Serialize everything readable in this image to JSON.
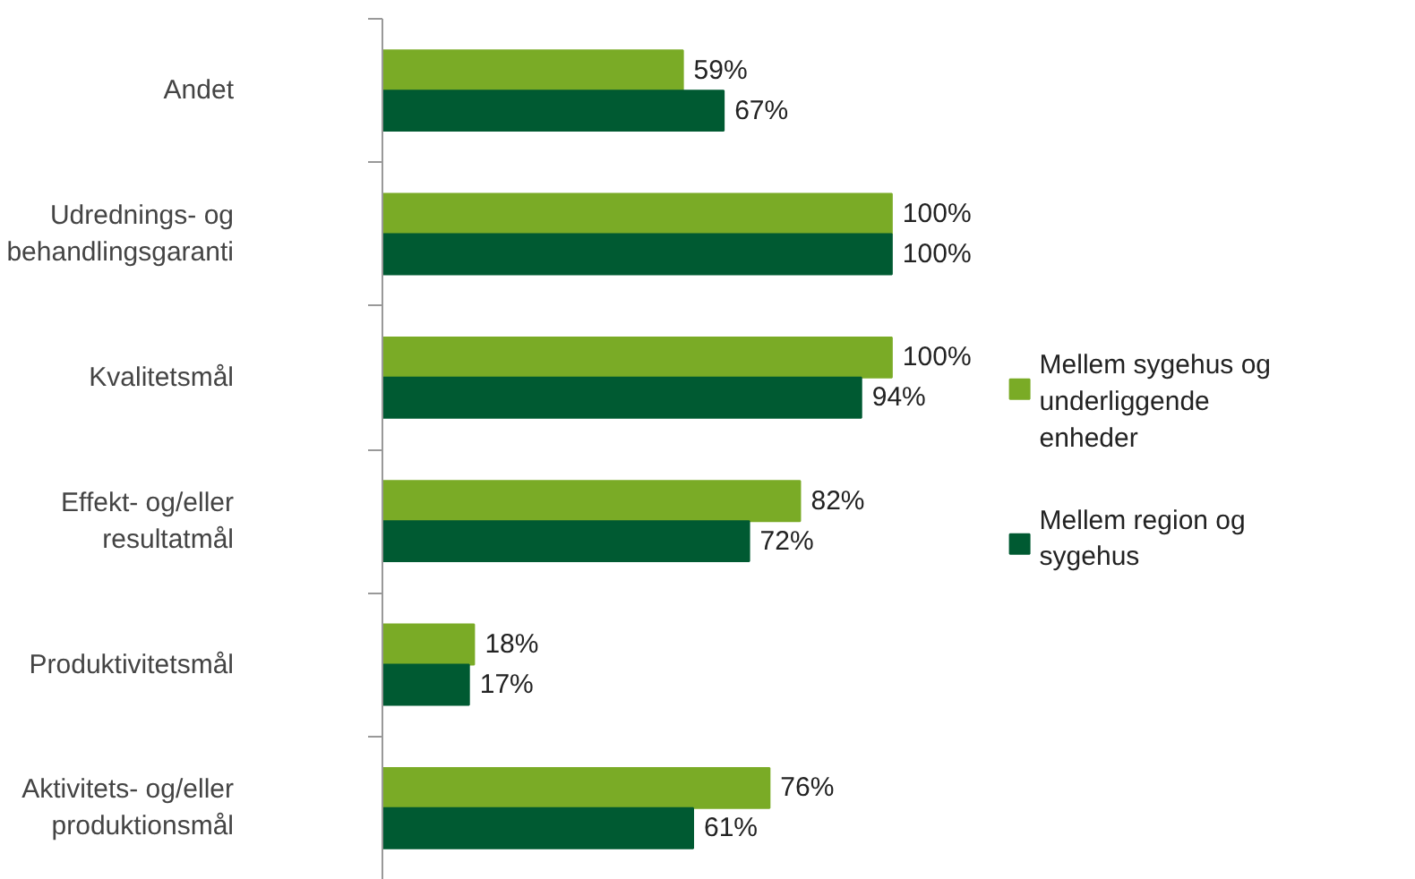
{
  "chart_data": {
    "type": "bar",
    "orientation": "horizontal",
    "categories": [
      "Andet",
      "Udrednings- og behandlingsgaranti",
      "Kvalitetsmål",
      "Effekt- og/eller resultatmål",
      "Produktivitetsmål",
      "Aktivitets- og/eller produktionsmål"
    ],
    "series": [
      {
        "name": "Mellem sygehus og underliggende enheder",
        "color": "#7aab26",
        "values": [
          59,
          100,
          100,
          82,
          18,
          76
        ],
        "value_labels": [
          "59%",
          "100%",
          "100%",
          "82%",
          "18%",
          "76%"
        ]
      },
      {
        "name": "Mellem region og sygehus",
        "color": "#005a32",
        "values": [
          67,
          100,
          94,
          72,
          17,
          61
        ],
        "value_labels": [
          "67%",
          "100%",
          "94%",
          "72%",
          "17%",
          "61%"
        ]
      }
    ],
    "legend": "right"
  }
}
